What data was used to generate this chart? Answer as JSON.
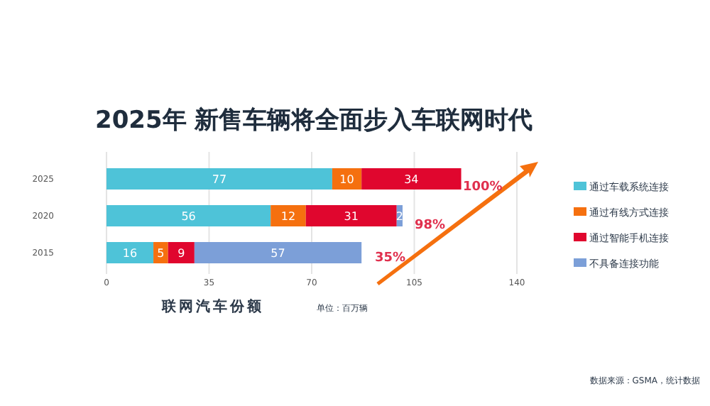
{
  "chart_data": {
    "type": "bar",
    "orientation": "horizontal",
    "stacked": true,
    "title": "2025年 新售车辆将全面步入车联网时代",
    "xlabel": "联网汽车份额",
    "categories": [
      "2025",
      "2020",
      "2015"
    ],
    "series": [
      {
        "name": "通过车载系统连接",
        "color": "#4ec3d8",
        "values": [
          77,
          56,
          16
        ]
      },
      {
        "name": "通过有线方式连接",
        "color": "#f5700f",
        "values": [
          10,
          12,
          5
        ]
      },
      {
        "name": "通过智能手机连接",
        "color": "#e0062e",
        "values": [
          34,
          31,
          9
        ]
      },
      {
        "name": "不具备连接功能",
        "color": "#7c9fd8",
        "values": [
          null,
          2,
          57
        ]
      }
    ],
    "xlim": [
      0,
      140
    ],
    "xticks": [
      0,
      35,
      70,
      105,
      140
    ],
    "grid": "x",
    "legend": "right",
    "data_labels": true,
    "annotations": [
      "单位：百万辆",
      "35%",
      "98%",
      "100%",
      "数据来源：GSMA，统计数据"
    ]
  }
}
